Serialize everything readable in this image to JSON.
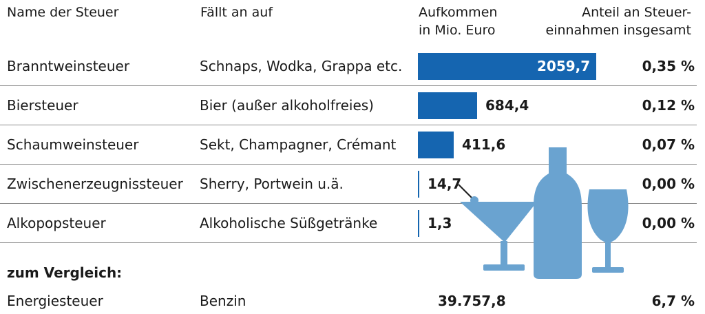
{
  "headers": {
    "name": "Name der Steuer",
    "applies_to": "Fällt an auf",
    "revenue_line1": "Aufkommen",
    "revenue_line2": "in Mio. Euro",
    "share_line1": "Anteil an Steuer-",
    "share_line2": "einnahmen insgesamt"
  },
  "rows": [
    {
      "name": "Branntweinsteuer",
      "applies_to": "Schnaps, Wodka, Grappa etc.",
      "value_label": "2059,7",
      "share": "0,35 %"
    },
    {
      "name": "Biersteuer",
      "applies_to": "Bier (außer alkoholfreies)",
      "value_label": "684,4",
      "share": "0,12 %"
    },
    {
      "name": "Schaumweinsteuer",
      "applies_to": "Sekt, Champagner, Crémant",
      "value_label": "411,6",
      "share": "0,07 %"
    },
    {
      "name": "Zwischenerzeugnissteuer",
      "applies_to": "Sherry, Portwein u.ä.",
      "value_label": "14,7",
      "share": "0,00 %"
    },
    {
      "name": "Alkopopsteuer",
      "applies_to": "Alkoholische Süßgetränke",
      "value_label": "1,3",
      "share": "0,00 %"
    }
  ],
  "comparison": {
    "title": "zum Vergleich:",
    "name": "Energiesteuer",
    "applies_to": "Benzin",
    "value_label": "39.757,8",
    "share": "6,7 %"
  },
  "chart_data": {
    "type": "bar",
    "orientation": "horizontal",
    "categories": [
      "Branntweinsteuer",
      "Biersteuer",
      "Schaumweinsteuer",
      "Zwischenerzeugnissteuer",
      "Alkopopsteuer"
    ],
    "values": [
      2059.7,
      684.4,
      411.6,
      14.7,
      1.3
    ],
    "share_percent": [
      0.35,
      0.12,
      0.07,
      0.0,
      0.0
    ],
    "comparison": {
      "category": "Energiesteuer",
      "value": 39757.8,
      "share_percent": 6.7
    },
    "bar_color": "#1565b0",
    "icon_color": "#6aa3d0",
    "icons": [
      "cocktail-glass-icon",
      "bottle-icon",
      "wine-glass-icon"
    ]
  }
}
